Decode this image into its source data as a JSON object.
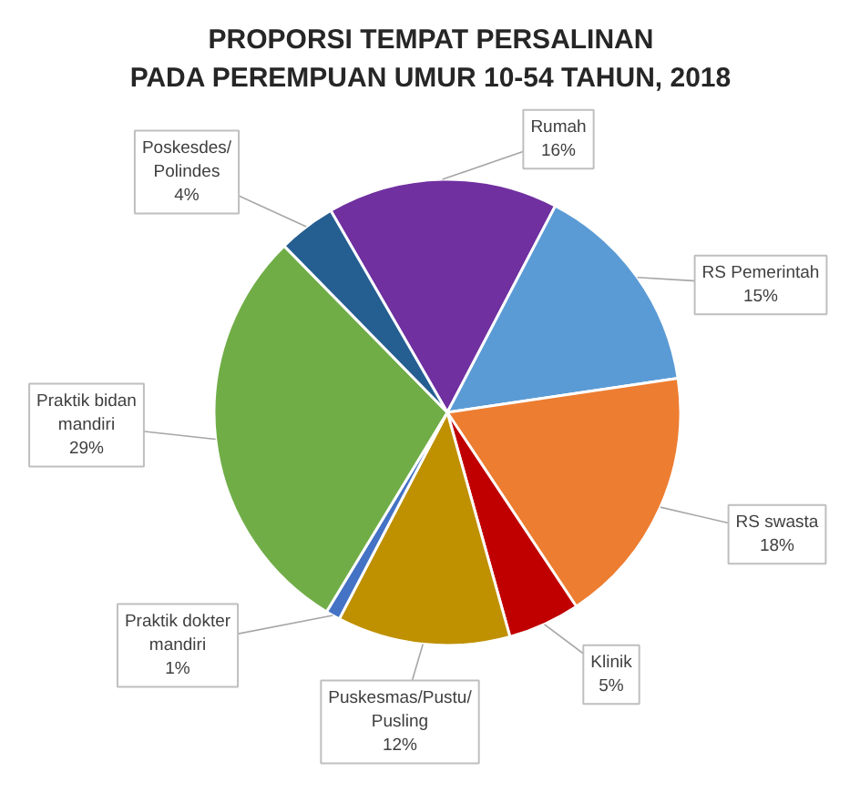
{
  "chart_data": {
    "type": "pie",
    "title": "PROPORSI TEMPAT PERSALINAN\nPADA PEREMPUAN UMUR 10-54 TAHUN, 2018",
    "categories": [
      "Rumah",
      "RS Pemerintah",
      "RS swasta",
      "Klinik",
      "Puskesmas/Pustu/Pusling",
      "Praktik dokter mandiri",
      "Praktik bidan mandiri",
      "Poskesdes/Polindes"
    ],
    "values": [
      16,
      15,
      18,
      5,
      12,
      1,
      29,
      4
    ],
    "colors": [
      "#7030a0",
      "#5b9bd5",
      "#ed7d31",
      "#c00000",
      "#bf9000",
      "#4472c4",
      "#70ad47",
      "#255e91"
    ],
    "value_labels": [
      "16%",
      "15%",
      "18%",
      "5%",
      "12%",
      "1%",
      "29%",
      "4%"
    ]
  }
}
